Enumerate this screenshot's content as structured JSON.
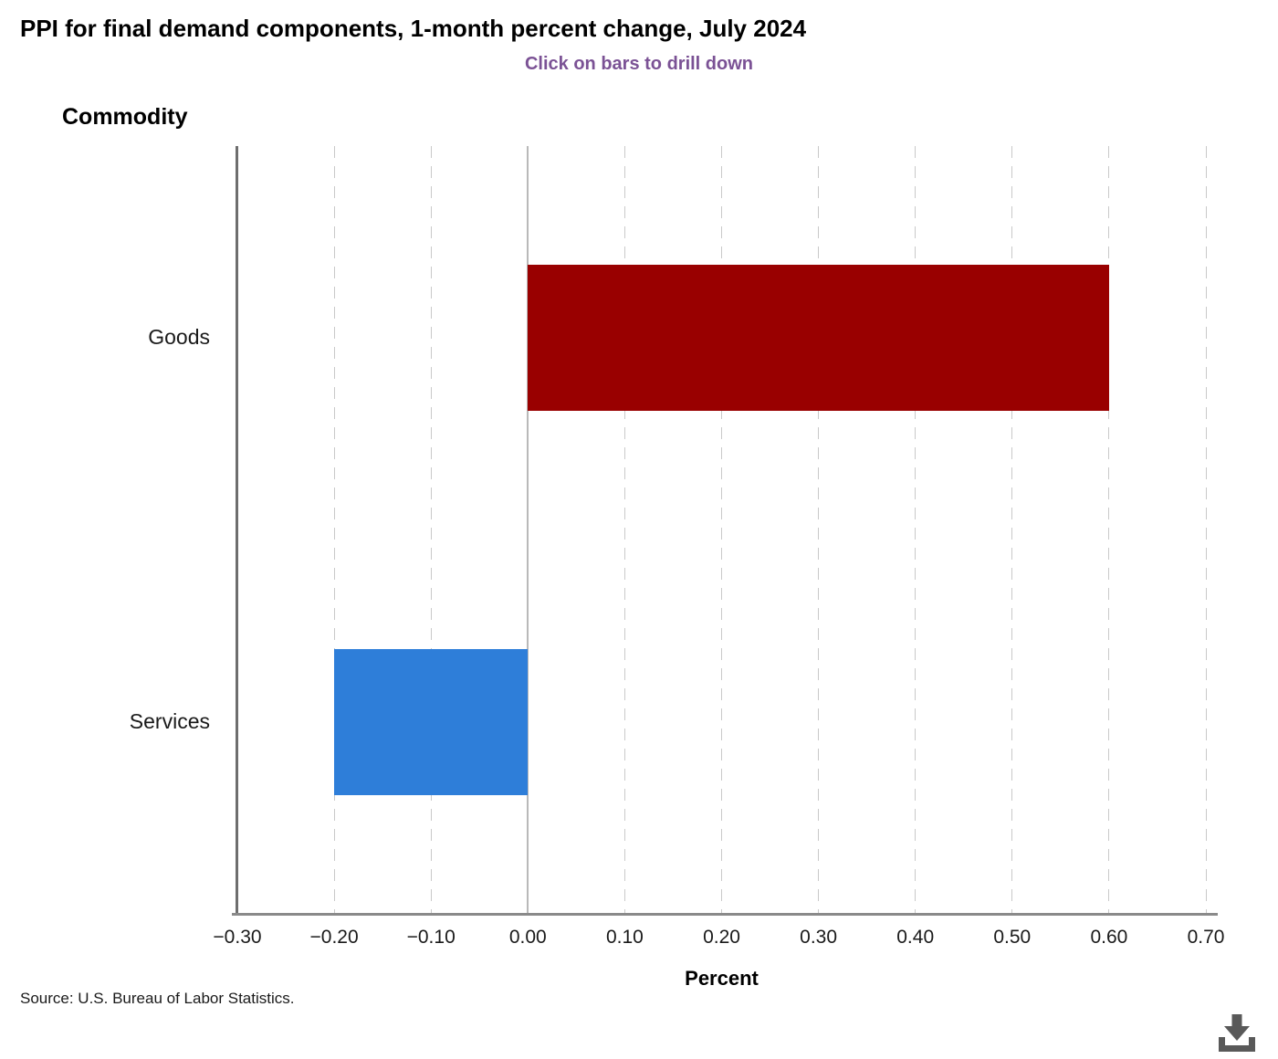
{
  "header": {
    "title": "PPI for final demand components, 1-month percent change, July 2024",
    "subtitle": "Click on bars to drill down"
  },
  "chart_data": {
    "type": "bar",
    "orientation": "horizontal",
    "title": "PPI for final demand components, 1-month percent change, July 2024",
    "subtitle": "Click on bars to drill down",
    "category_axis_title": "Commodity",
    "xlabel": "Percent",
    "categories": [
      "Goods",
      "Services"
    ],
    "values": [
      0.6,
      -0.2
    ],
    "bar_colors": [
      "#990000",
      "#2E7ED9"
    ],
    "xlim": [
      -0.3,
      0.7
    ],
    "xticks": [
      -0.3,
      -0.2,
      -0.1,
      0.0,
      0.1,
      0.2,
      0.3,
      0.4,
      0.5,
      0.6,
      0.7
    ],
    "xtick_labels": [
      "−0.30",
      "−0.20",
      "−0.10",
      "0.00",
      "0.10",
      "0.20",
      "0.30",
      "0.40",
      "0.50",
      "0.60",
      "0.70"
    ],
    "grid": "vertical dashed gridlines at each tick, solid line at zero",
    "legend": "none"
  },
  "footer": {
    "source": "Source: U.S. Bureau of Labor Statistics.",
    "download_icon": "download-icon"
  },
  "colors": {
    "goods_bar": "#990000",
    "services_bar": "#2E7ED9",
    "subtitle_purple": "#7B5295",
    "axis_gray": "#8a8a8a",
    "gridline_gray": "#c9c9c9",
    "icon_gray": "#595959"
  }
}
